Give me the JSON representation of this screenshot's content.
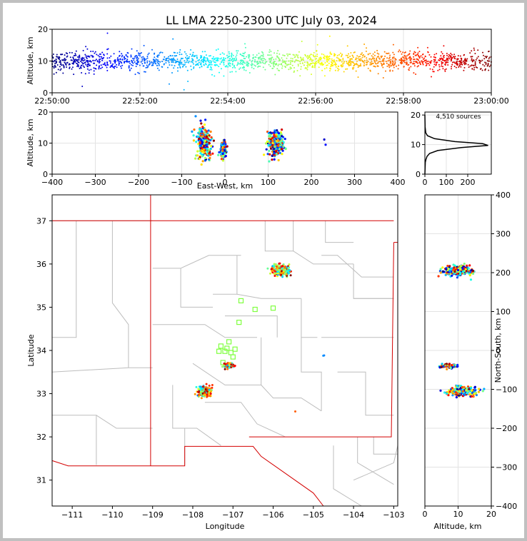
{
  "chart_data": [
    {
      "id": "time_alt",
      "type": "scatter",
      "title": "LL LMA 2250-2300 UTC July 03, 2024",
      "ylabel": "Altitude, km",
      "xlim": [
        "22:50:00",
        "23:00:00"
      ],
      "ylim": [
        0,
        20
      ],
      "xticks": [
        "22:50:00",
        "22:52:00",
        "22:54:00",
        "22:56:00",
        "22:58:00",
        "23:00:00"
      ],
      "yticks": [
        "0",
        "10",
        "20"
      ],
      "points_summary": {
        "altitude_center_km": 10,
        "altitude_spread_km": 1.5,
        "color_encodes": "time"
      }
    },
    {
      "id": "ew_alt",
      "type": "scatter",
      "xlabel": "East-West, km",
      "ylabel": "Altitude, km",
      "xlim": [
        -400,
        400
      ],
      "ylim": [
        0,
        20
      ],
      "xticks": [
        "−400",
        "−300",
        "−200",
        "−100",
        "0",
        "100",
        "200",
        "300",
        "400"
      ],
      "yticks": [
        "0",
        "10",
        "20"
      ],
      "clusters": [
        {
          "x_km": -50,
          "alt_km": 10,
          "count": 260
        },
        {
          "x_km": -5,
          "alt_km": 8,
          "count": 90
        },
        {
          "x_km": 117,
          "alt_km": 10,
          "count": 300
        },
        {
          "x_km": 232,
          "alt_km": 9.5,
          "count": 2
        }
      ]
    },
    {
      "id": "alt_hist",
      "type": "line",
      "annotation": "4,510 sources",
      "xlim": [
        0,
        310
      ],
      "ylim": [
        0,
        21
      ],
      "xticks": [
        "0",
        "100",
        "200"
      ],
      "yticks": [
        "0",
        "10",
        "20"
      ],
      "profile": [
        {
          "alt": 0,
          "count": 0
        },
        {
          "alt": 4,
          "count": 2
        },
        {
          "alt": 5,
          "count": 5
        },
        {
          "alt": 6,
          "count": 10
        },
        {
          "alt": 7,
          "count": 22
        },
        {
          "alt": 8,
          "count": 60
        },
        {
          "alt": 9,
          "count": 170
        },
        {
          "alt": 9.7,
          "count": 295
        },
        {
          "alt": 10.3,
          "count": 270
        },
        {
          "alt": 11,
          "count": 140
        },
        {
          "alt": 12,
          "count": 45
        },
        {
          "alt": 13,
          "count": 12
        },
        {
          "alt": 14,
          "count": 4
        },
        {
          "alt": 16,
          "count": 1
        },
        {
          "alt": 20,
          "count": 0
        }
      ]
    },
    {
      "id": "map",
      "type": "scatter",
      "xlabel": "Longitude",
      "ylabel": "Latitude",
      "xlim": [
        -111.5,
        -102.9
      ],
      "ylim": [
        30.4,
        37.6
      ],
      "xticks": [
        "−111",
        "−110",
        "−109",
        "−108",
        "−107",
        "−106",
        "−105",
        "−104",
        "−103"
      ],
      "yticks": [
        "31",
        "32",
        "33",
        "34",
        "35",
        "36",
        "37"
      ],
      "clusters": [
        {
          "lon": -105.8,
          "lat": 35.85,
          "count": 300
        },
        {
          "lon": -107.7,
          "lat": 33.05,
          "count": 200
        },
        {
          "lon": -107.1,
          "lat": 33.65,
          "count": 90
        },
        {
          "lon": -104.75,
          "lat": 33.88,
          "count": 2
        },
        {
          "lon": -105.45,
          "lat": 32.6,
          "count": 1
        }
      ],
      "stations": [
        {
          "lon": -106.8,
          "lat": 35.15
        },
        {
          "lon": -106.45,
          "lat": 34.95
        },
        {
          "lon": -106.0,
          "lat": 34.98
        },
        {
          "lon": -106.85,
          "lat": 34.65
        },
        {
          "lon": -107.3,
          "lat": 34.1
        },
        {
          "lon": -107.1,
          "lat": 34.2
        },
        {
          "lon": -107.15,
          "lat": 34.05
        },
        {
          "lon": -106.95,
          "lat": 34.03
        },
        {
          "lon": -107.35,
          "lat": 33.98
        },
        {
          "lon": -107.2,
          "lat": 33.98
        },
        {
          "lon": -107.05,
          "lat": 33.95
        },
        {
          "lon": -107.0,
          "lat": 33.85
        },
        {
          "lon": -107.25,
          "lat": 33.72
        },
        {
          "lon": -107.1,
          "lat": 33.65
        }
      ]
    },
    {
      "id": "alt_ns",
      "type": "scatter",
      "xlabel": "Altitude, km",
      "ylabel": "North-South, km",
      "xlim": [
        0,
        20
      ],
      "ylim": [
        -400,
        400
      ],
      "xticks": [
        "0",
        "10",
        "20"
      ],
      "yticks": [
        "400",
        "300",
        "200",
        "100",
        "0",
        "−100",
        "−200",
        "−300",
        "−400"
      ],
      "clusters": [
        {
          "alt_km": 10,
          "y_km": 205,
          "count": 260
        },
        {
          "alt_km": 7,
          "y_km": -40,
          "count": 60
        },
        {
          "alt_km": 11,
          "y_km": -105,
          "count": 230
        }
      ]
    }
  ],
  "colors": {
    "state_border": "#d40000",
    "county_border": "#bdbdbd",
    "grid": "#e3e3e3",
    "station": "#7fff3f"
  }
}
